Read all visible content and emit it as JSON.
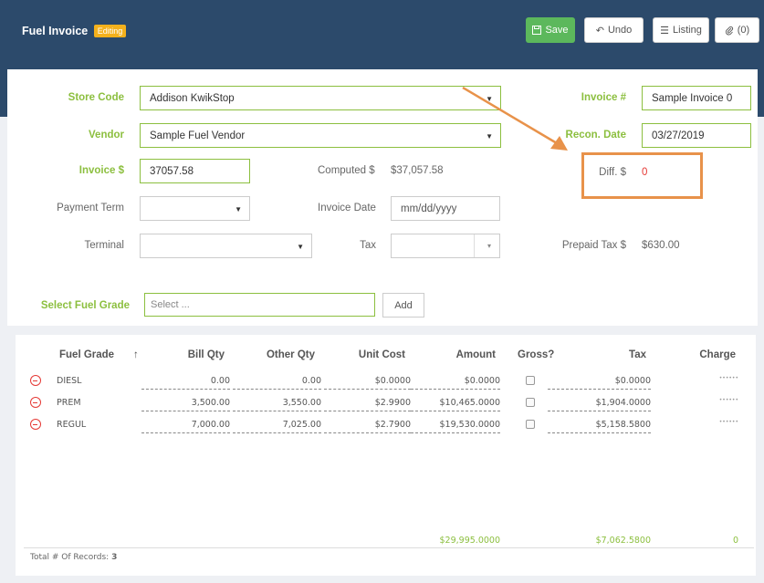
{
  "header": {
    "title": "Fuel Invoice",
    "badge": "Editing",
    "save_label": "Save",
    "undo_label": "Undo",
    "listing_label": "Listing",
    "attachments_label": "(0)"
  },
  "form": {
    "store_code_label": "Store Code",
    "store_code_value": "Addison KwikStop",
    "vendor_label": "Vendor",
    "vendor_value": "Sample Fuel Vendor",
    "invoice_amount_label": "Invoice $",
    "invoice_amount_value": "37057.58",
    "computed_label": "Computed $",
    "computed_value": "$37,057.58",
    "payment_term_label": "Payment Term",
    "payment_term_value": "",
    "invoice_date_label": "Invoice Date",
    "invoice_date_placeholder": "mm/dd/yyyy",
    "terminal_label": "Terminal",
    "terminal_value": "",
    "tax_label": "Tax",
    "tax_value": "",
    "invoice_no_label": "Invoice #",
    "invoice_no_value": "Sample Invoice 0",
    "recon_date_label": "Recon. Date",
    "recon_date_value": "03/27/2019",
    "diff_label": "Diff. $",
    "diff_value": "0",
    "prepaid_tax_label": "Prepaid Tax $",
    "prepaid_tax_value": "$630.00",
    "select_grade_label": "Select Fuel Grade",
    "select_grade_placeholder": "Select ...",
    "add_label": "Add"
  },
  "table": {
    "headers": {
      "fuel_grade": "Fuel Grade",
      "sort": "↑",
      "bill_qty": "Bill Qty",
      "other_qty": "Other Qty",
      "unit_cost": "Unit Cost",
      "amount": "Amount",
      "gross": "Gross?",
      "tax": "Tax",
      "charge": "Charge"
    },
    "rows": [
      {
        "grade": "DIESL",
        "bill_qty": "0.00",
        "other_qty": "0.00",
        "unit_cost": "$0.0000",
        "amount": "$0.0000",
        "gross": false,
        "tax": "$0.0000",
        "charge": "••••••"
      },
      {
        "grade": "PREM",
        "bill_qty": "3,500.00",
        "other_qty": "3,550.00",
        "unit_cost": "$2.9900",
        "amount": "$10,465.0000",
        "gross": false,
        "tax": "$1,904.0000",
        "charge": "••••••"
      },
      {
        "grade": "REGUL",
        "bill_qty": "7,000.00",
        "other_qty": "7,025.00",
        "unit_cost": "$2.7900",
        "amount": "$19,530.0000",
        "gross": false,
        "tax": "$5,158.5800",
        "charge": "••••••"
      }
    ],
    "totals": {
      "amount": "$29,995.0000",
      "tax": "$7,062.5800",
      "charge": "0"
    },
    "footer_label": "Total # Of Records:",
    "footer_count": "3"
  },
  "colors": {
    "header_bg": "#2c4a6b",
    "accent_green": "#8cbf3f",
    "badge": "#f4b11c",
    "highlight": "#e8924a",
    "error": "#e53935"
  }
}
